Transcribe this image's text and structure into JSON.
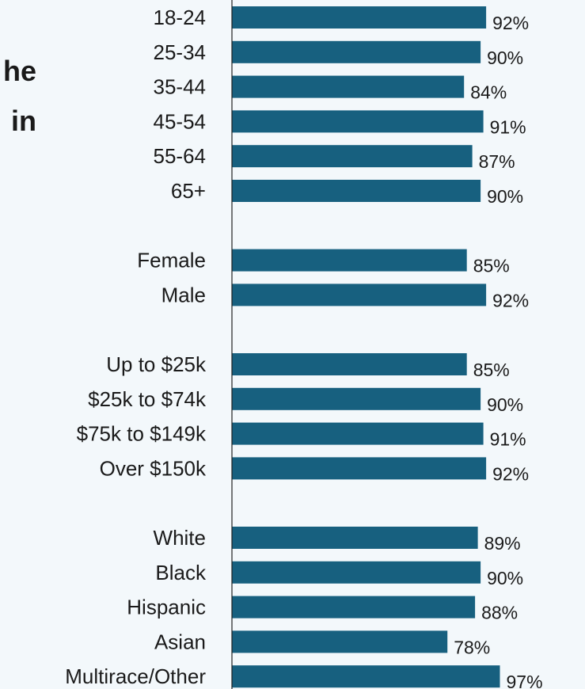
{
  "title_fragments": [
    "he",
    "in"
  ],
  "colors": {
    "bar": "#17607f",
    "axis": "#222222",
    "text": "#1a1a1a",
    "background": "#f3f8fb"
  },
  "chart_data": {
    "type": "bar",
    "orientation": "horizontal",
    "title": "",
    "xlabel": "",
    "ylabel": "",
    "value_suffix": "%",
    "xlim": [
      0,
      100
    ],
    "grid": false,
    "groups": [
      {
        "categories": [
          "18-24",
          "25-34",
          "35-44",
          "45-54",
          "55-64",
          "65+"
        ],
        "values": [
          92,
          90,
          84,
          91,
          87,
          90
        ]
      },
      {
        "categories": [
          "Female",
          "Male"
        ],
        "values": [
          85,
          92
        ]
      },
      {
        "categories": [
          "Up to $25k",
          "$25k to $74k",
          "$75k to $149k",
          "Over $150k"
        ],
        "values": [
          85,
          90,
          91,
          92
        ]
      },
      {
        "categories": [
          "White",
          "Black",
          "Hispanic",
          "Asian",
          "Multirace/Other"
        ],
        "values": [
          89,
          90,
          88,
          78,
          97
        ]
      }
    ]
  }
}
